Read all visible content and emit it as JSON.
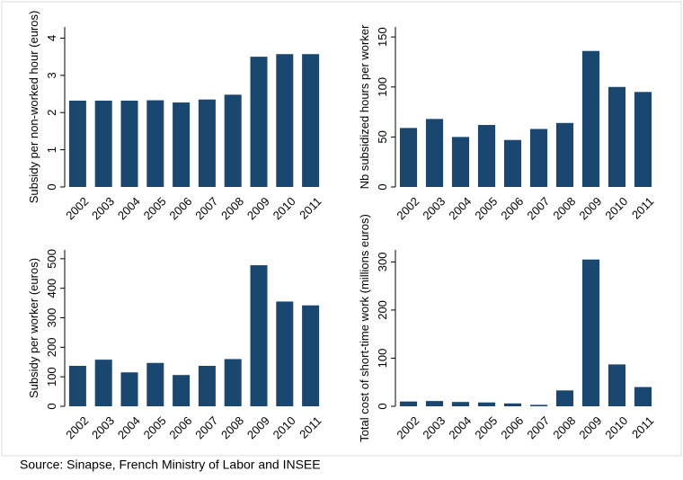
{
  "chart_data": [
    {
      "type": "bar",
      "ylabel": "Subsidy per non-worked hour (euros)",
      "categories": [
        "2002",
        "2003",
        "2004",
        "2005",
        "2006",
        "2007",
        "2008",
        "2009",
        "2010",
        "2011"
      ],
      "values": [
        2.32,
        2.32,
        2.32,
        2.33,
        2.27,
        2.35,
        2.48,
        3.5,
        3.57,
        3.57
      ],
      "color": "#1a476f",
      "ylim": [
        0,
        4.3
      ],
      "yticks": [
        0,
        1,
        2,
        3,
        4
      ]
    },
    {
      "type": "bar",
      "ylabel": "Nb subsidized hours per worker",
      "categories": [
        "2002",
        "2003",
        "2004",
        "2005",
        "2006",
        "2007",
        "2008",
        "2009",
        "2010",
        "2011"
      ],
      "values": [
        59,
        68,
        50,
        62,
        47,
        58,
        64,
        136,
        100,
        95
      ],
      "color": "#1a476f",
      "ylim": [
        0,
        160
      ],
      "yticks": [
        0,
        50,
        100,
        150
      ]
    },
    {
      "type": "bar",
      "ylabel": "Subsidy per worker (euros)",
      "categories": [
        "2002",
        "2003",
        "2004",
        "2005",
        "2006",
        "2007",
        "2008",
        "2009",
        "2010",
        "2011"
      ],
      "values": [
        137,
        158,
        115,
        147,
        106,
        137,
        160,
        478,
        355,
        342
      ],
      "color": "#1a476f",
      "ylim": [
        0,
        530
      ],
      "yticks": [
        0,
        100,
        200,
        300,
        400,
        500
      ]
    },
    {
      "type": "bar",
      "ylabel": "Total cost of short-time work (millions euros)",
      "categories": [
        "2002",
        "2003",
        "2004",
        "2005",
        "2006",
        "2007",
        "2008",
        "2009",
        "2010",
        "2011"
      ],
      "values": [
        10,
        11,
        9,
        8,
        6,
        3,
        33,
        305,
        87,
        40
      ],
      "color": "#1a476f",
      "ylim": [
        0,
        325
      ],
      "yticks": [
        0,
        100,
        200,
        300
      ]
    }
  ],
  "source": "Source: Sinapse, French Ministry of Labor and INSEE"
}
